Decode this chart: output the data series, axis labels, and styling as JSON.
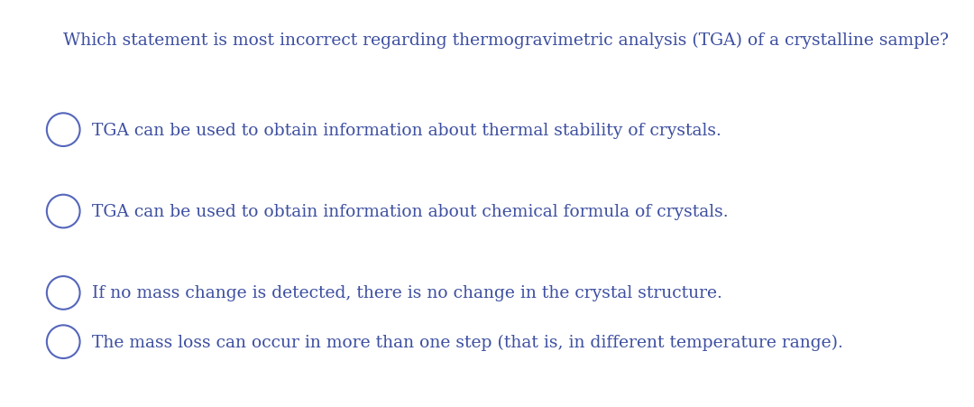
{
  "background_color": "#ffffff",
  "text_color": "#3d4fa0",
  "question": "Which statement is most incorrect regarding thermogravimetric analysis (TGA) of a crystalline sample?",
  "question_fontsize": 13.5,
  "options": [
    "TGA can be used to obtain information about thermal stability of crystals.",
    "TGA can be used to obtain information about chemical formula of crystals.",
    "If no mass change is detected, there is no change in the crystal structure.",
    "The mass loss can occur in more than one step (that is, in different temperature range)."
  ],
  "option_fontsize": 13.5,
  "text_color_circle": "#5566bb",
  "circle_linewidth": 1.5,
  "font_family": "DejaVu Serif"
}
